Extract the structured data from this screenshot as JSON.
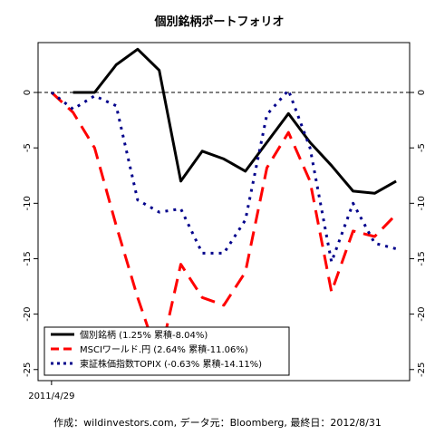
{
  "chart_data": {
    "type": "line",
    "title": "個別銘柄ポートフォリオ",
    "xlabel": "",
    "ylabel": "",
    "x_tick_label": "2011/4/29",
    "x": [
      0,
      1,
      2,
      3,
      4,
      5,
      6,
      7,
      8,
      9,
      10,
      11,
      12,
      13,
      14,
      15,
      16,
      17,
      18,
      19,
      20,
      21,
      22,
      23,
      24,
      25,
      26,
      27,
      28,
      29,
      30,
      31,
      32,
      33,
      34,
      35,
      36,
      37,
      38,
      39,
      40,
      41,
      42,
      43,
      44,
      45,
      46,
      47,
      48,
      49,
      50,
      51,
      52,
      53,
      54,
      55,
      56,
      57,
      58,
      59,
      60,
      61,
      62,
      63,
      64,
      65
    ],
    "xlim": [
      -2.5,
      66.5
    ],
    "ylim": [
      -26,
      4.5
    ],
    "yticks": [
      0,
      -5,
      -10,
      -15,
      -20,
      -25
    ],
    "grid": false,
    "reference_line": 0,
    "legend_position": "bottom-left",
    "series": [
      {
        "name": "個別銘柄 (1.25% 累積-8.04%)",
        "color": "#000000",
        "dash": "solid",
        "x": [
          4,
          8,
          12,
          16,
          20,
          24,
          28,
          32,
          36,
          40,
          44,
          48,
          52,
          56,
          60,
          64
        ],
        "values": [
          0,
          0,
          2.5,
          3.9,
          2.0,
          -8.0,
          -5.3,
          -6.0,
          -7.1,
          -4.5,
          -1.9,
          -4.5,
          -6.6,
          -8.9,
          -9.1,
          -8.0
        ]
      },
      {
        "name": "MSCIワールド.円 (2.64% 累積-11.06%)",
        "color": "#ff0000",
        "dash": "long",
        "x": [
          0,
          4,
          8,
          12,
          16,
          20,
          24,
          28,
          32,
          36,
          40,
          44,
          48,
          52,
          56,
          60,
          64
        ],
        "values": [
          0,
          -1.8,
          -5.0,
          -12.0,
          -18.5,
          -24.2,
          -15.5,
          -18.5,
          -19.2,
          -16.2,
          -6.8,
          -3.6,
          -8.0,
          -18.0,
          -12.5,
          -13.0,
          -11.0
        ]
      },
      {
        "name": "東証株価指数TOPIX (-0.63% 累積-14.11%)",
        "color": "#00008b",
        "dash": "dot",
        "x": [
          0,
          4,
          8,
          12,
          16,
          20,
          24,
          28,
          32,
          36,
          40,
          44,
          48,
          52,
          56,
          60,
          64
        ],
        "values": [
          0,
          -1.5,
          -0.3,
          -1.2,
          -9.7,
          -10.8,
          -10.5,
          -14.5,
          -14.5,
          -11.5,
          -2.0,
          0.2,
          -5.0,
          -15.3,
          -10.0,
          -13.6,
          -14.1
        ]
      }
    ]
  },
  "credit": "作成：wildinvestors.com, データ元：Bloomberg, 最終日：2012/8/31"
}
